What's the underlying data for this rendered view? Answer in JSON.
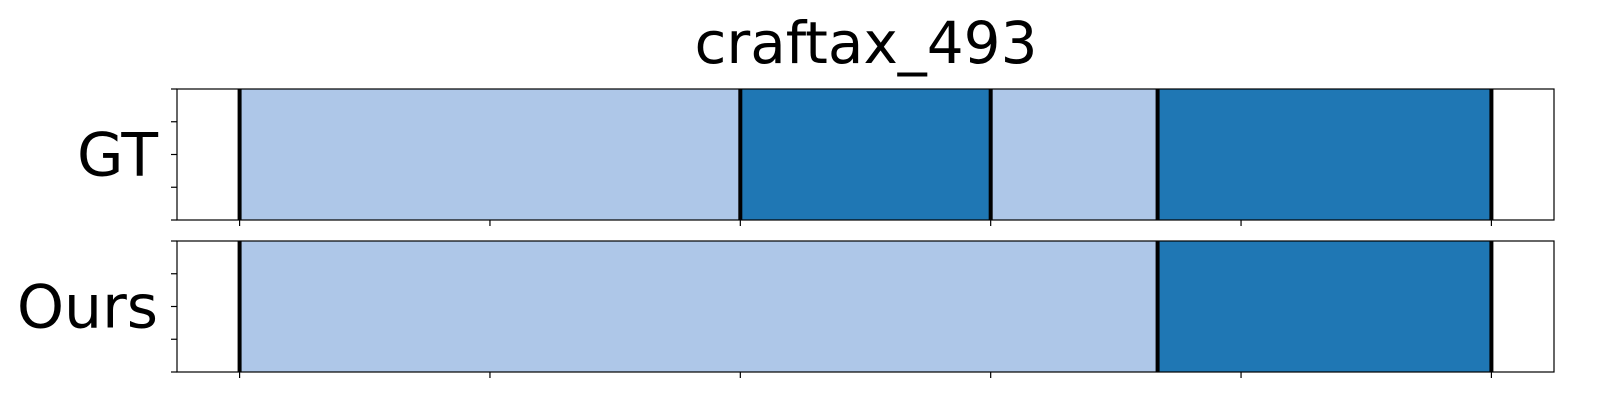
{
  "chart_data": {
    "type": "bar",
    "title": "craftax_493",
    "xlim": [
      0,
      33
    ],
    "x_ticks": [
      1.5,
      7.5,
      13.5,
      19.5,
      25.5,
      31.5
    ],
    "y_ticks_per_row": 5,
    "colors": {
      "light": "#aec7e8",
      "dark": "#1f77b4",
      "boundary": "#000000"
    },
    "rows": [
      {
        "label": "GT",
        "segments": [
          {
            "start": 1.5,
            "end": 13.5,
            "color": "light"
          },
          {
            "start": 13.5,
            "end": 19.5,
            "color": "dark"
          },
          {
            "start": 19.5,
            "end": 23.5,
            "color": "light"
          },
          {
            "start": 23.5,
            "end": 31.5,
            "color": "dark"
          }
        ]
      },
      {
        "label": "Ours",
        "segments": [
          {
            "start": 1.5,
            "end": 23.5,
            "color": "light"
          },
          {
            "start": 23.5,
            "end": 31.5,
            "color": "dark"
          }
        ]
      }
    ]
  }
}
